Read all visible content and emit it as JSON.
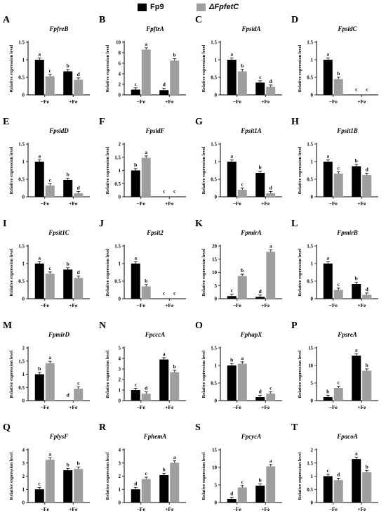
{
  "legend": [
    {
      "name": "Fp9",
      "color": "#000000"
    },
    {
      "name": "ΔFpfetC",
      "color": "#9e9e9e"
    }
  ],
  "chart_data": [
    {
      "type": "bar",
      "panel": "A",
      "title": "FpfreB",
      "ylabel": "Relative expression level",
      "categories": [
        "−Fe",
        "+Fe"
      ],
      "ylim": [
        0,
        1.5
      ],
      "yticks": [
        0,
        0.5,
        1.0,
        1.5
      ],
      "series": [
        {
          "name": "Fp9",
          "values": [
            1.0,
            0.67
          ],
          "letters": [
            "a",
            "b"
          ]
        },
        {
          "name": "ΔFpfetC",
          "values": [
            0.53,
            0.43
          ],
          "letters": [
            "c",
            "d"
          ]
        }
      ]
    },
    {
      "type": "bar",
      "panel": "B",
      "title": "FpftrA",
      "ylabel": "Relative expression level",
      "categories": [
        "−Fe",
        "+Fe"
      ],
      "ylim": [
        0,
        10
      ],
      "yticks": [
        0,
        2,
        4,
        6,
        8,
        10
      ],
      "series": [
        {
          "name": "Fp9",
          "values": [
            1.0,
            0.9
          ],
          "letters": [
            "c",
            "d"
          ]
        },
        {
          "name": "ΔFpfetC",
          "values": [
            8.6,
            6.5
          ],
          "letters": [
            "a",
            "b"
          ]
        }
      ]
    },
    {
      "type": "bar",
      "panel": "C",
      "title": "FpsidA",
      "ylabel": "Relative expression level",
      "categories": [
        "−Fe",
        "+Fe"
      ],
      "ylim": [
        0,
        1.5
      ],
      "yticks": [
        0,
        0.5,
        1.0,
        1.5
      ],
      "series": [
        {
          "name": "Fp9",
          "values": [
            1.0,
            0.35
          ],
          "letters": [
            "a",
            "c"
          ]
        },
        {
          "name": "ΔFpfetC",
          "values": [
            0.67,
            0.23
          ],
          "letters": [
            "b",
            "d"
          ]
        }
      ]
    },
    {
      "type": "bar",
      "panel": "D",
      "title": "FpsidC",
      "ylabel": "Relative expression level",
      "categories": [
        "−Fe",
        "+Fe"
      ],
      "ylim": [
        0,
        1.5
      ],
      "yticks": [
        0,
        0.5,
        1.0,
        1.5
      ],
      "series": [
        {
          "name": "Fp9",
          "values": [
            1.0,
            0.0
          ],
          "letters": [
            "a",
            "c"
          ]
        },
        {
          "name": "ΔFpfetC",
          "values": [
            0.45,
            0.0
          ],
          "letters": [
            "b",
            "c"
          ]
        }
      ]
    },
    {
      "type": "bar",
      "panel": "E",
      "title": "FpsidD",
      "ylabel": "Relative expression level",
      "categories": [
        "−Fe",
        "+Fe"
      ],
      "ylim": [
        0,
        1.5
      ],
      "yticks": [
        0,
        0.5,
        1.0,
        1.5
      ],
      "series": [
        {
          "name": "Fp9",
          "values": [
            1.0,
            0.48
          ],
          "letters": [
            "a",
            "b"
          ]
        },
        {
          "name": "ΔFpfetC",
          "values": [
            0.32,
            0.1
          ],
          "letters": [
            "c",
            "d"
          ]
        }
      ]
    },
    {
      "type": "bar",
      "panel": "F",
      "title": "FpsidF",
      "ylabel": "Relative expression level",
      "categories": [
        "−Fe",
        "+Fe"
      ],
      "ylim": [
        0,
        2.0
      ],
      "yticks": [
        0,
        0.5,
        1.0,
        1.5,
        2.0
      ],
      "series": [
        {
          "name": "Fp9",
          "values": [
            1.0,
            0.0
          ],
          "letters": [
            "b",
            "c"
          ]
        },
        {
          "name": "ΔFpfetC",
          "values": [
            1.48,
            0.0
          ],
          "letters": [
            "a",
            "c"
          ]
        }
      ]
    },
    {
      "type": "bar",
      "panel": "G",
      "title": "Fpsit1A",
      "ylabel": "Relative expression level",
      "categories": [
        "−Fe",
        "+Fe"
      ],
      "ylim": [
        0,
        1.5
      ],
      "yticks": [
        0,
        0.5,
        1.0,
        1.5
      ],
      "series": [
        {
          "name": "Fp9",
          "values": [
            1.0,
            0.68
          ],
          "letters": [
            "a",
            "b"
          ]
        },
        {
          "name": "ΔFpfetC",
          "values": [
            0.2,
            0.1
          ],
          "letters": [
            "c",
            "d"
          ]
        }
      ]
    },
    {
      "type": "bar",
      "panel": "H",
      "title": "Fpsit1B",
      "ylabel": "Relative expression level",
      "categories": [
        "−Fe",
        "+Fe"
      ],
      "ylim": [
        0,
        1.5
      ],
      "yticks": [
        0,
        0.5,
        1.0,
        1.5
      ],
      "series": [
        {
          "name": "Fp9",
          "values": [
            1.0,
            0.87
          ],
          "letters": [
            "a",
            "b"
          ]
        },
        {
          "name": "ΔFpfetC",
          "values": [
            0.66,
            0.62
          ],
          "letters": [
            "c",
            "d"
          ]
        }
      ]
    },
    {
      "type": "bar",
      "panel": "I",
      "title": "Fpsit1C",
      "ylabel": "Relative expression level",
      "categories": [
        "−Fe",
        "+Fe"
      ],
      "ylim": [
        0,
        1.5
      ],
      "yticks": [
        0,
        0.5,
        1.0,
        1.5
      ],
      "series": [
        {
          "name": "Fp9",
          "values": [
            1.0,
            0.83
          ],
          "letters": [
            "a",
            "b"
          ]
        },
        {
          "name": "ΔFpfetC",
          "values": [
            0.71,
            0.59
          ],
          "letters": [
            "c",
            "d"
          ]
        }
      ]
    },
    {
      "type": "bar",
      "panel": "J",
      "title": "Fpsit2",
      "ylabel": "Relative expression level",
      "categories": [
        "−Fe",
        "+Fe"
      ],
      "ylim": [
        0,
        1.5
      ],
      "yticks": [
        0,
        0.5,
        1.0,
        1.5
      ],
      "series": [
        {
          "name": "Fp9",
          "values": [
            1.0,
            0.0
          ],
          "letters": [
            "a",
            "c"
          ]
        },
        {
          "name": "ΔFpfetC",
          "values": [
            0.35,
            0.0
          ],
          "letters": [
            "b",
            "c"
          ]
        }
      ]
    },
    {
      "type": "bar",
      "panel": "K",
      "title": "FpmirA",
      "ylabel": "Relative expression level",
      "categories": [
        "−Fe",
        "+Fe"
      ],
      "ylim": [
        0,
        20
      ],
      "yticks": [
        0,
        5,
        10,
        15,
        20
      ],
      "series": [
        {
          "name": "Fp9",
          "values": [
            1.0,
            0.7
          ],
          "letters": [
            "c",
            "d"
          ]
        },
        {
          "name": "ΔFpfetC",
          "values": [
            8.6,
            17.8
          ],
          "letters": [
            "b",
            "a"
          ]
        }
      ]
    },
    {
      "type": "bar",
      "panel": "L",
      "title": "FpmirB",
      "ylabel": "Relative expression level",
      "categories": [
        "−Fe",
        "+Fe"
      ],
      "ylim": [
        0,
        1.5
      ],
      "yticks": [
        0,
        0.5,
        1.0,
        1.5
      ],
      "series": [
        {
          "name": "Fp9",
          "values": [
            1.0,
            0.42
          ],
          "letters": [
            "a",
            "b"
          ]
        },
        {
          "name": "ΔFpfetC",
          "values": [
            0.25,
            0.11
          ],
          "letters": [
            "c",
            "d"
          ]
        }
      ]
    },
    {
      "type": "bar",
      "panel": "M",
      "title": "FpmirD",
      "ylabel": "Relative expression level",
      "categories": [
        "−Fe",
        "+Fe"
      ],
      "ylim": [
        0,
        2.0
      ],
      "yticks": [
        0,
        0.5,
        1.0,
        1.5,
        2.0
      ],
      "series": [
        {
          "name": "Fp9",
          "values": [
            1.0,
            0.0
          ],
          "letters": [
            "b",
            "d"
          ]
        },
        {
          "name": "ΔFpfetC",
          "values": [
            1.42,
            0.45
          ],
          "letters": [
            "a",
            "c"
          ]
        }
      ]
    },
    {
      "type": "bar",
      "panel": "N",
      "title": "FpcccA",
      "ylabel": "Relative expression level",
      "categories": [
        "−Fe",
        "+Fe"
      ],
      "ylim": [
        0,
        5
      ],
      "yticks": [
        0,
        1,
        2,
        3,
        4,
        5
      ],
      "series": [
        {
          "name": "Fp9",
          "values": [
            1.0,
            3.9
          ],
          "letters": [
            "c",
            "a"
          ]
        },
        {
          "name": "ΔFpfetC",
          "values": [
            0.65,
            2.7
          ],
          "letters": [
            "d",
            "b"
          ]
        }
      ]
    },
    {
      "type": "bar",
      "panel": "O",
      "title": "FphapX",
      "ylabel": "Relative expression level",
      "categories": [
        "−Fe",
        "+Fe"
      ],
      "ylim": [
        0,
        1.5
      ],
      "yticks": [
        0,
        0.5,
        1.0,
        1.5
      ],
      "series": [
        {
          "name": "Fp9",
          "values": [
            1.0,
            0.1
          ],
          "letters": [
            "b",
            "d"
          ]
        },
        {
          "name": "ΔFpfetC",
          "values": [
            1.05,
            0.2
          ],
          "letters": [
            "a",
            "c"
          ]
        }
      ]
    },
    {
      "type": "bar",
      "panel": "P",
      "title": "FpsreA",
      "ylabel": "Relative expression level",
      "categories": [
        "−Fe",
        "+Fe"
      ],
      "ylim": [
        0,
        15
      ],
      "yticks": [
        0,
        5,
        10,
        15
      ],
      "series": [
        {
          "name": "Fp9",
          "values": [
            1.0,
            12.8
          ],
          "letters": [
            "b",
            "a"
          ]
        },
        {
          "name": "ΔFpfetC",
          "values": [
            3.6,
            8.5
          ],
          "letters": [
            "c",
            "b"
          ]
        }
      ]
    },
    {
      "type": "bar",
      "panel": "Q",
      "title": "FplysF",
      "ylabel": "Relative expression level",
      "categories": [
        "−Fe",
        "+Fe"
      ],
      "ylim": [
        0,
        4
      ],
      "yticks": [
        0,
        1,
        2,
        3,
        4
      ],
      "series": [
        {
          "name": "Fp9",
          "values": [
            1.0,
            2.45
          ],
          "letters": [
            "c",
            "b"
          ]
        },
        {
          "name": "ΔFpfetC",
          "values": [
            3.25,
            2.55
          ],
          "letters": [
            "a",
            "b"
          ]
        }
      ]
    },
    {
      "type": "bar",
      "panel": "R",
      "title": "FphemA",
      "ylabel": "Relative expression level",
      "categories": [
        "−Fe",
        "+Fe"
      ],
      "ylim": [
        0,
        4
      ],
      "yticks": [
        0,
        1,
        2,
        3,
        4
      ],
      "series": [
        {
          "name": "Fp9",
          "values": [
            1.0,
            2.08
          ],
          "letters": [
            "d",
            "b"
          ]
        },
        {
          "name": "ΔFpfetC",
          "values": [
            1.78,
            3.02
          ],
          "letters": [
            "c",
            "a"
          ]
        }
      ]
    },
    {
      "type": "bar",
      "panel": "S",
      "title": "FpcycA",
      "ylabel": "Relative expression level",
      "categories": [
        "−Fe",
        "+Fe"
      ],
      "ylim": [
        0,
        15
      ],
      "yticks": [
        0,
        5,
        10,
        15
      ],
      "series": [
        {
          "name": "Fp9",
          "values": [
            1.0,
            4.8
          ],
          "letters": [
            "d",
            "b"
          ]
        },
        {
          "name": "ΔFpfetC",
          "values": [
            4.3,
            10.3
          ],
          "letters": [
            "c",
            "a"
          ]
        }
      ]
    },
    {
      "type": "bar",
      "panel": "T",
      "title": "FpacoA",
      "ylabel": "Relative expression level",
      "categories": [
        "−Fe",
        "+Fe"
      ],
      "ylim": [
        0,
        2.0
      ],
      "yticks": [
        0,
        0.5,
        1.0,
        1.5,
        2.0
      ],
      "series": [
        {
          "name": "Fp9",
          "values": [
            1.0,
            1.65
          ],
          "letters": [
            "c",
            "a"
          ]
        },
        {
          "name": "ΔFpfetC",
          "values": [
            0.85,
            1.15
          ],
          "letters": [
            "d",
            "b"
          ]
        }
      ]
    }
  ]
}
